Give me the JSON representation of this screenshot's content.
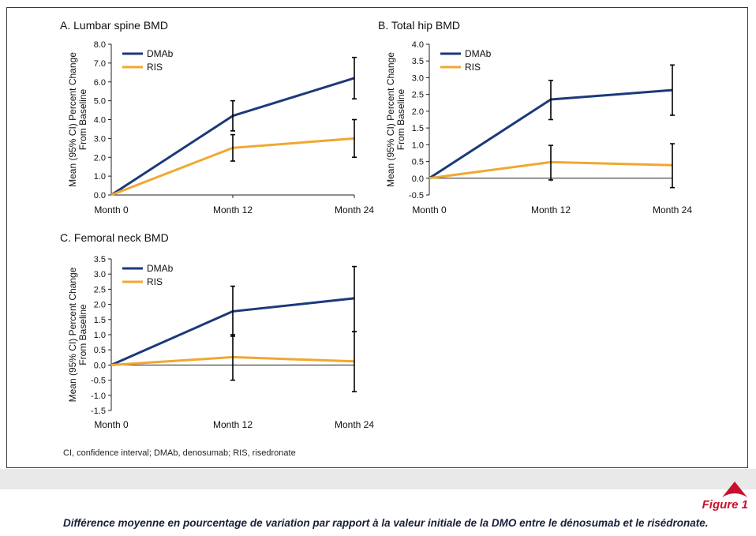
{
  "footnote": "CI, confidence interval; DMAb, denosumab; RIS, risedronate",
  "figure_label": "Figure 1",
  "caption": "Différence moyenne en pourcentage de variation par rapport à la valeur initiale de la DMO entre le dénosumab et le risédronate.",
  "colors": {
    "DMAb": "#1c3a7a",
    "RIS": "#f0a830",
    "error_bar": "#000000",
    "accent": "#c8102e"
  },
  "chart_data": [
    {
      "id": "A",
      "type": "line",
      "title": "A. Lumbar spine BMD",
      "ylabel": [
        "Mean (95% CI) Percent Change",
        "From Baseline"
      ],
      "categories": [
        "Month 0",
        "Month 12",
        "Month 24"
      ],
      "ylim": [
        0,
        8
      ],
      "yticks": [
        "0.0",
        "1.0",
        "2.0",
        "3.0",
        "4.0",
        "5.0",
        "6.0",
        "7.0",
        "8.0"
      ],
      "legend": "top-left",
      "series": [
        {
          "name": "DMAb",
          "values": [
            0,
            4.2,
            6.2
          ],
          "ci_low": [
            null,
            3.4,
            5.1
          ],
          "ci_high": [
            null,
            5.0,
            7.3
          ]
        },
        {
          "name": "RIS",
          "values": [
            0,
            2.5,
            3.0
          ],
          "ci_low": [
            null,
            1.8,
            2.0
          ],
          "ci_high": [
            null,
            3.2,
            4.0
          ]
        }
      ]
    },
    {
      "id": "B",
      "type": "line",
      "title": "B. Total hip BMD",
      "ylabel": [
        "Mean (95% CI) Percent Change",
        "From Baseline"
      ],
      "categories": [
        "Month 0",
        "Month 12",
        "Month 24"
      ],
      "ylim": [
        -0.5,
        4.0
      ],
      "yticks": [
        "-0.5",
        "0.0",
        "0.5",
        "1.0",
        "1.5",
        "2.0",
        "2.5",
        "3.0",
        "3.5",
        "4.0"
      ],
      "legend": "top-left",
      "series": [
        {
          "name": "DMAb",
          "values": [
            0,
            2.35,
            2.63
          ],
          "ci_low": [
            null,
            1.75,
            1.88
          ],
          "ci_high": [
            null,
            2.92,
            3.38
          ]
        },
        {
          "name": "RIS",
          "values": [
            0,
            0.48,
            0.39
          ],
          "ci_low": [
            null,
            -0.05,
            -0.28
          ],
          "ci_high": [
            null,
            0.98,
            1.03
          ]
        }
      ]
    },
    {
      "id": "C",
      "type": "line",
      "title": "C. Femoral neck BMD",
      "ylabel": [
        "Mean (95% CI) Percent Change",
        "From Baseline"
      ],
      "categories": [
        "Month 0",
        "Month 12",
        "Month 24"
      ],
      "ylim": [
        -1.5,
        3.5
      ],
      "yticks": [
        "-1.5",
        "-1.0",
        "-0.5",
        "0.0",
        "0.5",
        "1.0",
        "1.5",
        "2.0",
        "2.5",
        "3.0",
        "3.5"
      ],
      "legend": "top-left",
      "series": [
        {
          "name": "DMAb",
          "values": [
            0,
            1.77,
            2.2
          ],
          "ci_low": [
            null,
            0.95,
            1.1
          ],
          "ci_high": [
            null,
            2.6,
            3.25
          ]
        },
        {
          "name": "RIS",
          "values": [
            0,
            0.26,
            0.12
          ],
          "ci_low": [
            null,
            -0.5,
            -0.88
          ],
          "ci_high": [
            null,
            1.0,
            1.1
          ]
        }
      ]
    }
  ]
}
